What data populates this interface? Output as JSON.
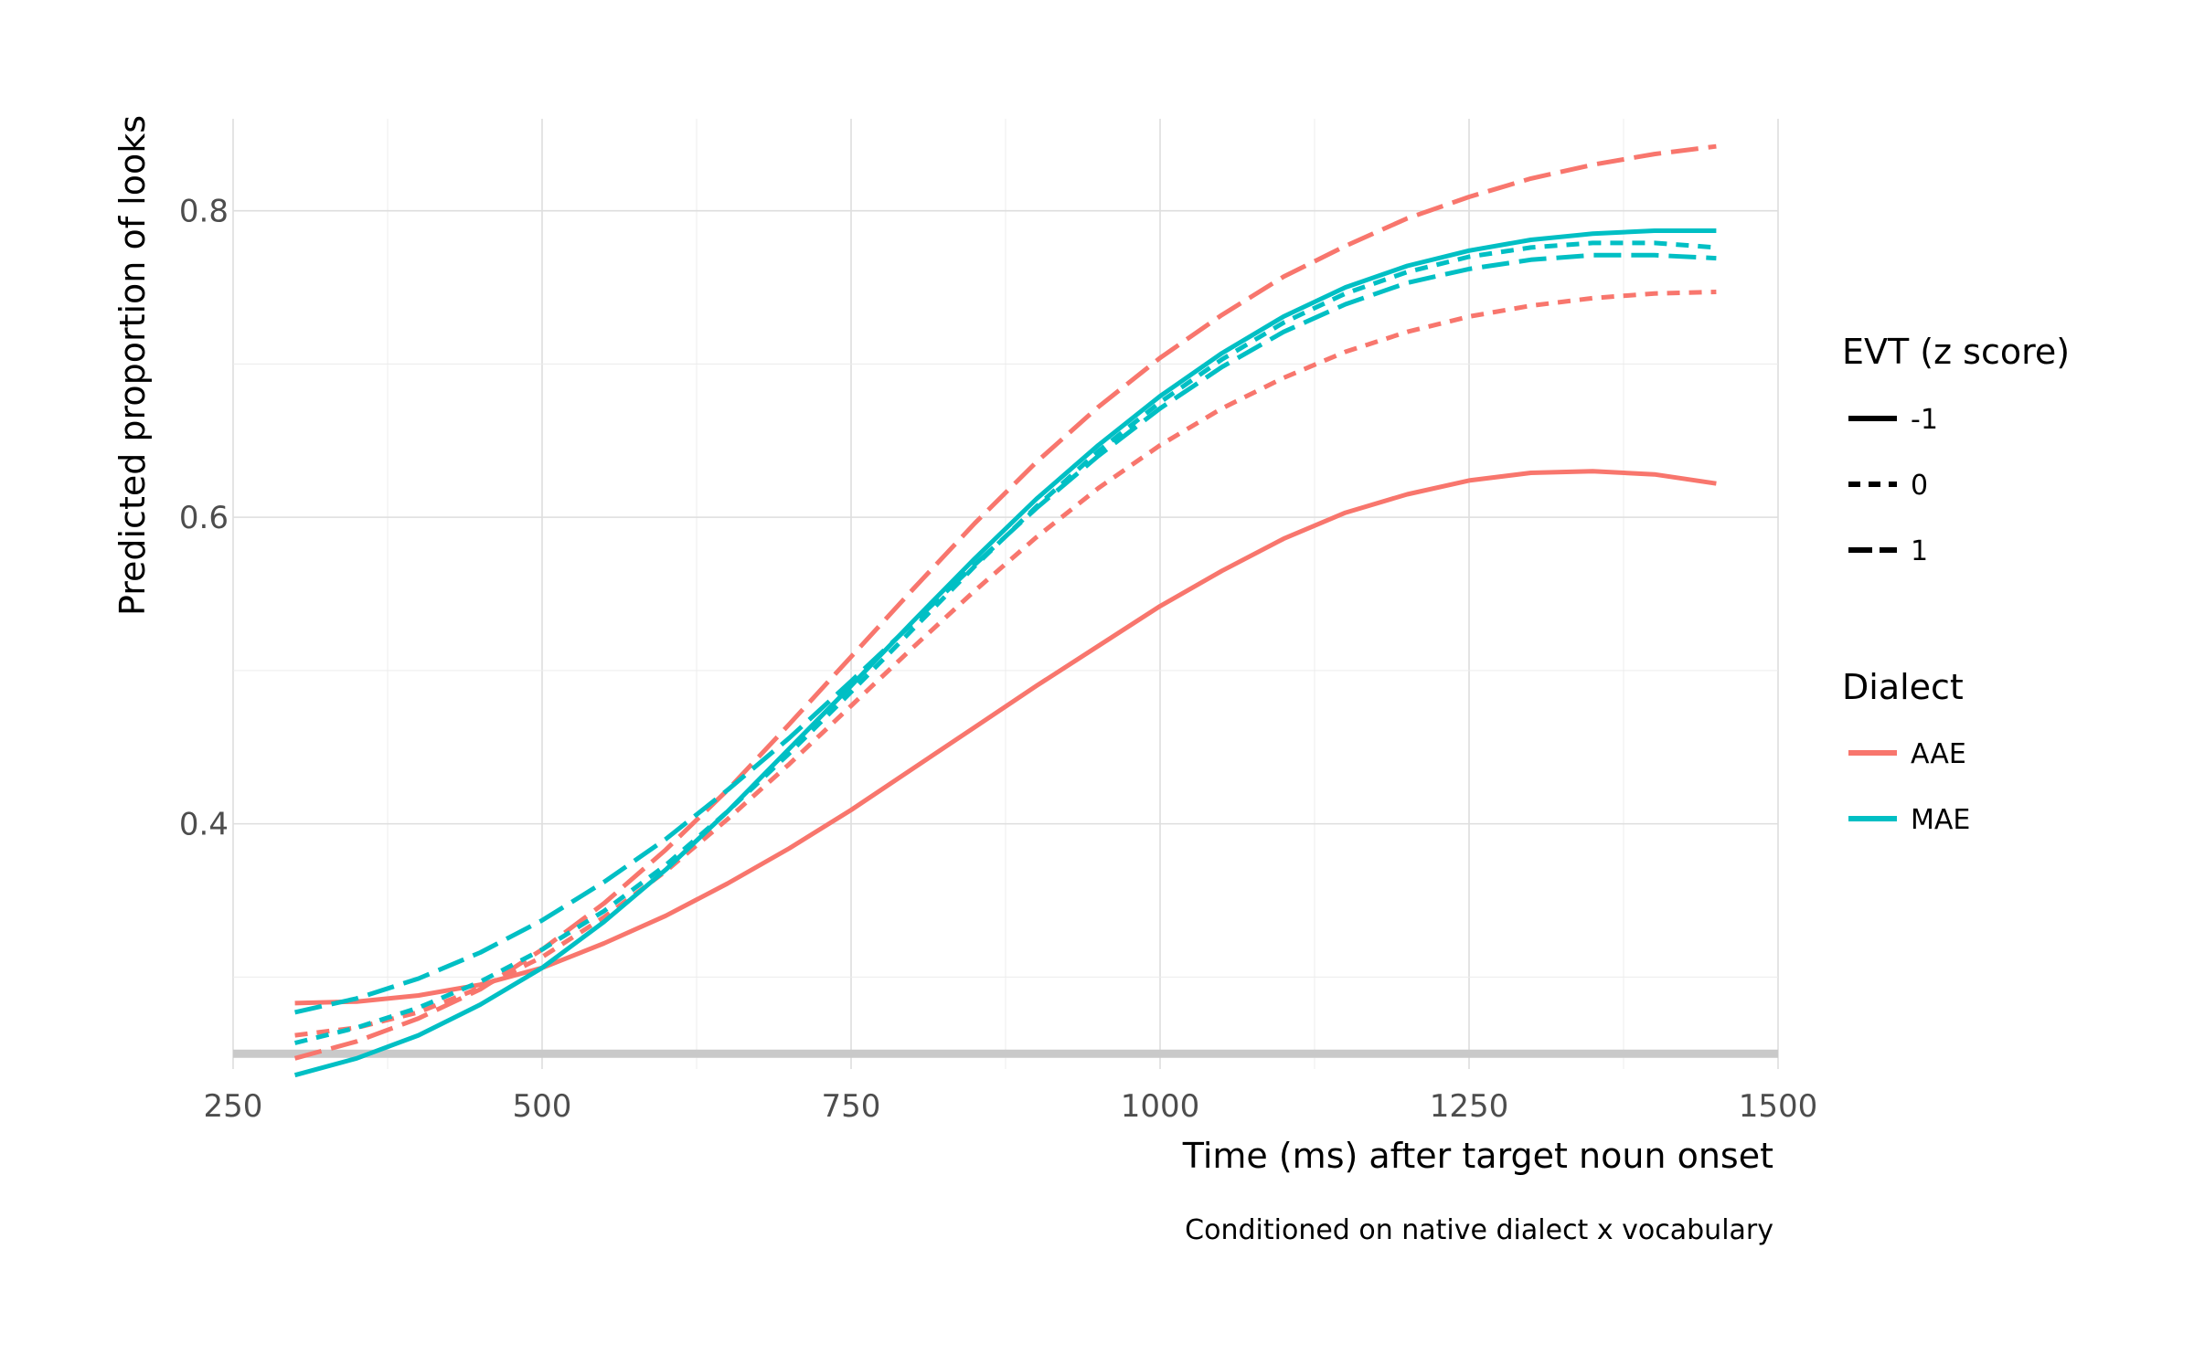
{
  "chart_data": {
    "type": "line",
    "title": "",
    "xlabel": "Time (ms) after target noun onset",
    "ylabel": "Predicted proportion of looks",
    "caption": "Conditioned on native dialect x vocabulary",
    "xlim": [
      250,
      1500
    ],
    "ylim": [
      0.24,
      0.86
    ],
    "x_ticks": [
      250,
      500,
      750,
      1000,
      1250,
      1500
    ],
    "x_tick_labels": [
      "250",
      "500",
      "750",
      "1000",
      "1250",
      "1500"
    ],
    "y_ticks": [
      0.4,
      0.6,
      0.8
    ],
    "y_tick_labels": [
      "0.4",
      "0.6",
      "0.8"
    ],
    "reference_line": 0.25,
    "grid": true,
    "legend_placement": "right",
    "legends": {
      "linetype": {
        "title": "EVT (z score)",
        "entries": [
          {
            "label": "-1",
            "dash": "solid"
          },
          {
            "label": "0",
            "dash": "dashed"
          },
          {
            "label": "1",
            "dash": "longdash"
          }
        ]
      },
      "color": {
        "title": "Dialect",
        "entries": [
          {
            "label": "AAE",
            "color": "#F8766D"
          },
          {
            "label": "MAE",
            "color": "#00BFC4"
          }
        ]
      }
    },
    "x": [
      300,
      350,
      400,
      450,
      500,
      550,
      600,
      650,
      700,
      750,
      800,
      850,
      900,
      950,
      1000,
      1050,
      1100,
      1150,
      1200,
      1250,
      1300,
      1350,
      1400,
      1450
    ],
    "series": [
      {
        "dialect": "AAE",
        "evt": "-1",
        "color": "#F8766D",
        "dash": "solid",
        "values": [
          0.283,
          0.284,
          0.288,
          0.295,
          0.306,
          0.322,
          0.34,
          0.361,
          0.384,
          0.409,
          0.436,
          0.463,
          0.49,
          0.516,
          0.542,
          0.565,
          0.586,
          0.603,
          0.615,
          0.624,
          0.629,
          0.63,
          0.628,
          0.622
        ]
      },
      {
        "dialect": "AAE",
        "evt": "0",
        "color": "#F8766D",
        "dash": "dashed",
        "values": [
          0.262,
          0.267,
          0.277,
          0.293,
          0.313,
          0.339,
          0.369,
          0.403,
          0.439,
          0.477,
          0.515,
          0.552,
          0.587,
          0.619,
          0.647,
          0.671,
          0.691,
          0.708,
          0.721,
          0.731,
          0.738,
          0.743,
          0.746,
          0.747
        ]
      },
      {
        "dialect": "AAE",
        "evt": "1",
        "color": "#F8766D",
        "dash": "longdash",
        "values": [
          0.247,
          0.258,
          0.273,
          0.292,
          0.318,
          0.348,
          0.383,
          0.422,
          0.465,
          0.509,
          0.553,
          0.596,
          0.636,
          0.672,
          0.704,
          0.732,
          0.757,
          0.777,
          0.795,
          0.809,
          0.821,
          0.83,
          0.837,
          0.842
        ]
      },
      {
        "dialect": "MAE",
        "evt": "-1",
        "color": "#00BFC4",
        "dash": "solid",
        "values": [
          0.236,
          0.247,
          0.262,
          0.282,
          0.306,
          0.336,
          0.37,
          0.408,
          0.449,
          0.49,
          0.532,
          0.573,
          0.612,
          0.647,
          0.679,
          0.707,
          0.731,
          0.75,
          0.764,
          0.774,
          0.781,
          0.785,
          0.787,
          0.787
        ]
      },
      {
        "dialect": "MAE",
        "evt": "0",
        "color": "#00BFC4",
        "dash": "dashed",
        "values": [
          0.257,
          0.267,
          0.28,
          0.297,
          0.318,
          0.343,
          0.373,
          0.408,
          0.446,
          0.486,
          0.527,
          0.568,
          0.607,
          0.643,
          0.675,
          0.703,
          0.727,
          0.746,
          0.76,
          0.77,
          0.776,
          0.779,
          0.779,
          0.776
        ]
      },
      {
        "dialect": "MAE",
        "evt": "1",
        "color": "#00BFC4",
        "dash": "longdash",
        "values": [
          0.277,
          0.286,
          0.299,
          0.316,
          0.337,
          0.362,
          0.39,
          0.422,
          0.456,
          0.493,
          0.531,
          0.569,
          0.606,
          0.64,
          0.671,
          0.698,
          0.721,
          0.739,
          0.753,
          0.762,
          0.768,
          0.771,
          0.771,
          0.769
        ]
      }
    ]
  }
}
